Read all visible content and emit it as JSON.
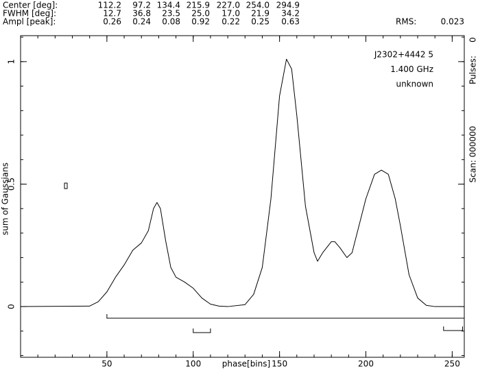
{
  "chart_data": {
    "type": "line",
    "header": {
      "rows": [
        {
          "label": "Center [deg]:",
          "values": [
            "112.2",
            "97.2",
            "134.4",
            "215.9",
            "227.0",
            "254.0",
            "294.9"
          ]
        },
        {
          "label": "FWHM  [deg]:",
          "values": [
            "12.7",
            "36.8",
            "23.5",
            "25.0",
            "17.0",
            "21.9",
            "34.2"
          ]
        },
        {
          "label": "Ampl  [peak]:",
          "values": [
            "0.26",
            "0.24",
            "0.08",
            "0.92",
            "0.22",
            "0.25",
            "0.63"
          ]
        }
      ],
      "rms_label": "RMS:",
      "rms": "0.023"
    },
    "annotations": [
      "J2302+4442 5",
      "1.400 GHz",
      "unknown"
    ],
    "side_labels": [
      "Scan: 000000",
      "Pulses:",
      "0"
    ],
    "x_label": "phase[bins]",
    "y_label": "sum of Gaussians",
    "xlim": [
      0,
      257
    ],
    "ylim": [
      -0.207,
      1.106
    ],
    "xticks": [
      50,
      100,
      150,
      200,
      250
    ],
    "xminor_step": 10,
    "yticks": [
      0,
      0.5,
      1
    ],
    "yminor_step": 0.1,
    "windows": [
      [
        50,
        257
      ],
      [
        100,
        110
      ],
      [
        245,
        256
      ]
    ],
    "series": [
      {
        "name": "sum of Gaussians",
        "color": "#000000",
        "x": [
          0,
          40,
          45,
          50,
          55,
          60,
          65,
          70,
          74,
          77,
          79,
          81,
          84,
          87,
          90,
          95,
          100,
          105,
          110,
          115,
          120,
          130,
          135,
          140,
          145,
          150,
          154,
          157,
          160,
          165,
          170,
          172,
          175,
          180,
          182,
          185,
          189,
          192,
          196,
          200,
          205,
          209,
          213,
          217,
          220,
          225,
          230,
          235,
          240,
          257
        ],
        "values": [
          0,
          0.002,
          0.02,
          0.06,
          0.12,
          0.17,
          0.23,
          0.26,
          0.31,
          0.4,
          0.425,
          0.4,
          0.27,
          0.16,
          0.12,
          0.1,
          0.075,
          0.035,
          0.01,
          0.002,
          0,
          0.008,
          0.05,
          0.16,
          0.44,
          0.86,
          1.01,
          0.97,
          0.78,
          0.41,
          0.22,
          0.185,
          0.22,
          0.265,
          0.265,
          0.24,
          0.2,
          0.22,
          0.33,
          0.44,
          0.54,
          0.557,
          0.54,
          0.44,
          0.33,
          0.13,
          0.035,
          0.005,
          0,
          0
        ]
      }
    ]
  }
}
